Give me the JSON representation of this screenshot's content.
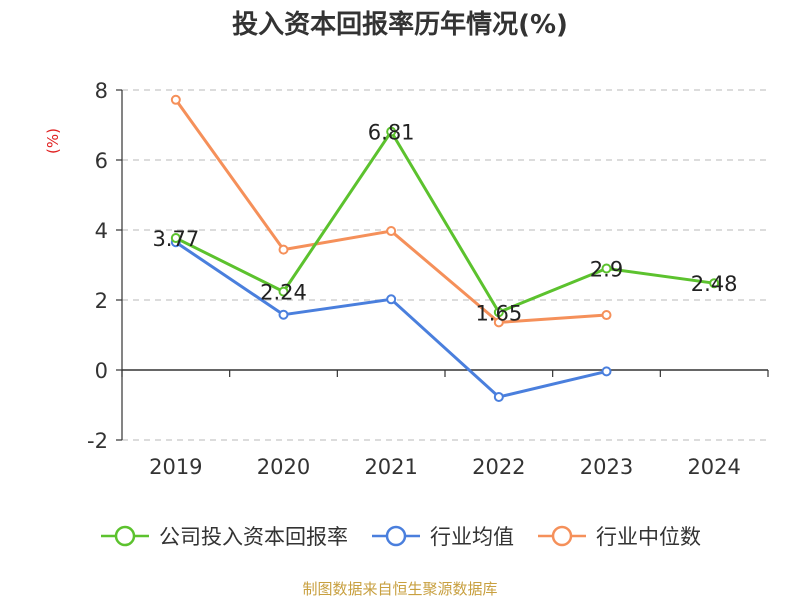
{
  "chart_data": {
    "type": "line",
    "title": "投入资本回报率历年情况(%)",
    "ylabel": "(%)",
    "xlabel": "",
    "categories": [
      "2019",
      "2020",
      "2021",
      "2022",
      "2023",
      "2024"
    ],
    "ylim": [
      -2,
      8
    ],
    "yticks": [
      -2,
      0,
      2,
      4,
      6,
      8
    ],
    "grid": true,
    "legend_position": "bottom",
    "series": [
      {
        "name": "公司投入资本回报率",
        "color": "#5cc22e",
        "values": [
          3.77,
          2.24,
          6.81,
          1.65,
          2.9,
          2.48
        ],
        "labels": [
          "3.77",
          "2.24",
          "6.81",
          "1.65",
          "2.9",
          "2.48"
        ]
      },
      {
        "name": "行业均值",
        "color": "#4a7fdd",
        "values": [
          3.65,
          1.58,
          2.02,
          -0.77,
          -0.04,
          null
        ]
      },
      {
        "name": "行业中位数",
        "color": "#f5905a",
        "values": [
          7.72,
          3.44,
          3.97,
          1.36,
          1.57,
          null
        ]
      }
    ]
  },
  "source": "制图数据来自恒生聚源数据库"
}
